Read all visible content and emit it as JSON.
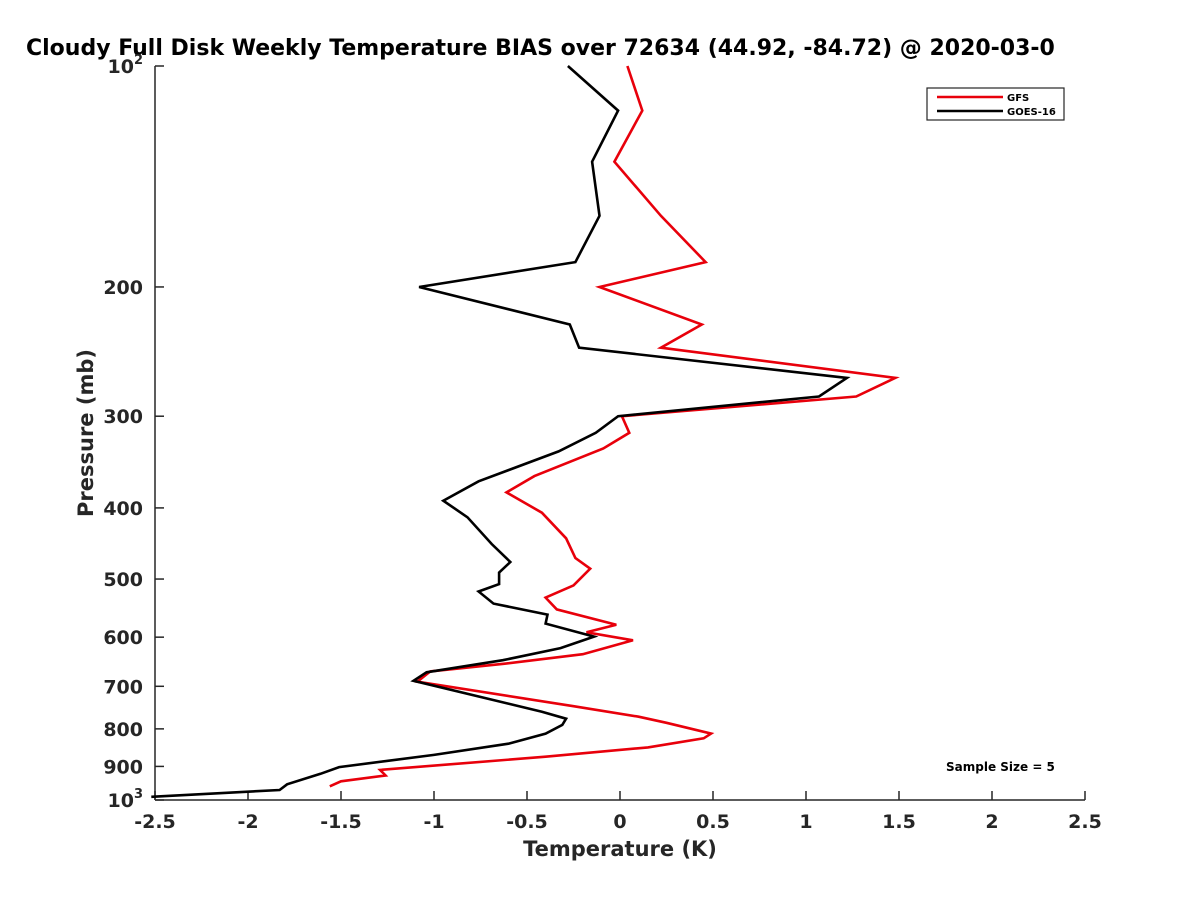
{
  "chart_data": {
    "type": "line",
    "title": "Cloudy Full Disk Weekly Temperature BIAS over 72634 (44.92, -84.72) @ 2020-03-0",
    "xlabel": "Temperature (K)",
    "ylabel": "Pressure (mb)",
    "xlim": [
      -2.5,
      2.5
    ],
    "ylim": [
      100,
      1000
    ],
    "yscale": "log",
    "y_reversed": true,
    "grid": false,
    "legend_position": "top-right",
    "x_ticks": [
      {
        "value": -2.5,
        "label": "-2.5"
      },
      {
        "value": -2,
        "label": "-2"
      },
      {
        "value": -1.5,
        "label": "-1.5"
      },
      {
        "value": -1,
        "label": "-1"
      },
      {
        "value": -0.5,
        "label": "-0.5"
      },
      {
        "value": 0,
        "label": "0"
      },
      {
        "value": 0.5,
        "label": "0.5"
      },
      {
        "value": 1,
        "label": "1"
      },
      {
        "value": 1.5,
        "label": "1.5"
      },
      {
        "value": 2,
        "label": "2"
      },
      {
        "value": 2.5,
        "label": "2.5"
      }
    ],
    "y_ticks": [
      {
        "value": 100,
        "base": "10",
        "exp": "2"
      },
      {
        "value": 200,
        "label": "200"
      },
      {
        "value": 300,
        "label": "300"
      },
      {
        "value": 400,
        "label": "400"
      },
      {
        "value": 500,
        "label": "500"
      },
      {
        "value": 600,
        "label": "600"
      },
      {
        "value": 700,
        "label": "700"
      },
      {
        "value": 800,
        "label": "800"
      },
      {
        "value": 900,
        "label": "900"
      },
      {
        "value": 1000,
        "base": "10",
        "exp": "3"
      }
    ],
    "series": [
      {
        "name": "GFS",
        "color": "#e8000b",
        "points": [
          [
            0.04,
            100
          ],
          [
            0.12,
            115
          ],
          [
            -0.03,
            135
          ],
          [
            0.22,
            160
          ],
          [
            0.46,
            185
          ],
          [
            -0.11,
            200
          ],
          [
            0.44,
            225
          ],
          [
            0.22,
            242
          ],
          [
            1.48,
            266
          ],
          [
            1.27,
            282
          ],
          [
            0.01,
            300
          ],
          [
            0.05,
            316
          ],
          [
            -0.09,
            332
          ],
          [
            -0.46,
            362
          ],
          [
            -0.61,
            381
          ],
          [
            -0.42,
            406
          ],
          [
            -0.29,
            440
          ],
          [
            -0.24,
            468
          ],
          [
            -0.16,
            484
          ],
          [
            -0.25,
            510
          ],
          [
            -0.4,
            530
          ],
          [
            -0.34,
            550
          ],
          [
            -0.02,
            577
          ],
          [
            -0.18,
            591
          ],
          [
            0.07,
            606
          ],
          [
            -0.2,
            633
          ],
          [
            -0.62,
            652
          ],
          [
            -1.02,
            668
          ],
          [
            -1.09,
            690
          ],
          [
            -0.25,
            745
          ],
          [
            0.1,
            770
          ],
          [
            0.25,
            785
          ],
          [
            0.49,
            812
          ],
          [
            0.45,
            824
          ],
          [
            0.15,
            848
          ],
          [
            -0.4,
            873
          ],
          [
            -1.29,
            910
          ],
          [
            -1.26,
            926
          ],
          [
            -1.5,
            943
          ],
          [
            -1.56,
            958
          ]
        ]
      },
      {
        "name": "GOES-16",
        "color": "#000000",
        "points": [
          [
            -0.28,
            100
          ],
          [
            -0.01,
            115
          ],
          [
            -0.15,
            135
          ],
          [
            -0.11,
            160
          ],
          [
            -0.24,
            185
          ],
          [
            -1.08,
            200
          ],
          [
            -0.27,
            225
          ],
          [
            -0.22,
            242
          ],
          [
            1.22,
            266
          ],
          [
            1.07,
            282
          ],
          [
            -0.01,
            300
          ],
          [
            -0.13,
            316
          ],
          [
            -0.33,
            335
          ],
          [
            -0.76,
            368
          ],
          [
            -0.95,
            391
          ],
          [
            -0.82,
            412
          ],
          [
            -0.69,
            448
          ],
          [
            -0.59,
            474
          ],
          [
            -0.65,
            490
          ],
          [
            -0.65,
            508
          ],
          [
            -0.76,
            520
          ],
          [
            -0.68,
            540
          ],
          [
            -0.39,
            559
          ],
          [
            -0.4,
            575
          ],
          [
            -0.14,
            599
          ],
          [
            -0.32,
            621
          ],
          [
            -0.63,
            645
          ],
          [
            -1.04,
            670
          ],
          [
            -1.11,
            688
          ],
          [
            -0.42,
            758
          ],
          [
            -0.29,
            775
          ],
          [
            -0.31,
            790
          ],
          [
            -0.4,
            812
          ],
          [
            -0.6,
            838
          ],
          [
            -1.0,
            868
          ],
          [
            -1.51,
            902
          ],
          [
            -1.61,
            921
          ],
          [
            -1.79,
            952
          ],
          [
            -1.83,
            969
          ],
          [
            -2.52,
            990
          ]
        ]
      }
    ],
    "annotations": [
      "Sample Size = 5"
    ]
  }
}
